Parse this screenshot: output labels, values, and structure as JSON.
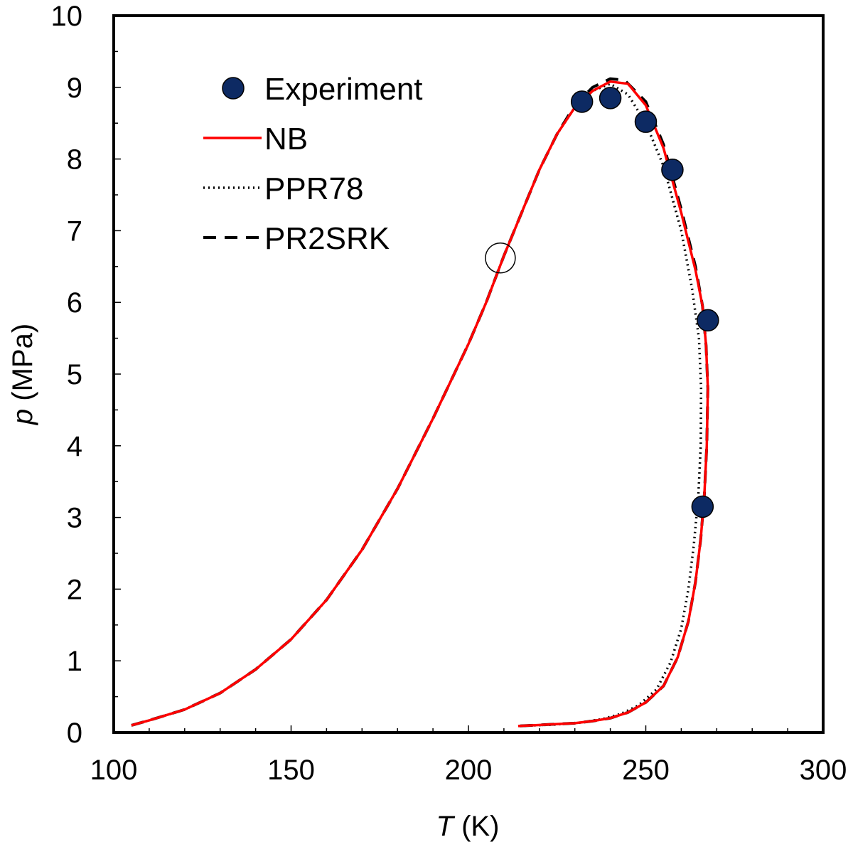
{
  "chart_data": {
    "type": "line",
    "title": "",
    "xlabel": "T",
    "xlabel_unit": "(K)",
    "ylabel": "p",
    "ylabel_unit": "(MPa)",
    "xlim": [
      100,
      300
    ],
    "ylim": [
      0,
      10
    ],
    "x_ticks": [
      100,
      150,
      200,
      250,
      300
    ],
    "y_ticks": [
      0,
      1,
      2,
      3,
      4,
      5,
      6,
      7,
      8,
      9,
      10
    ],
    "x_minor_step": 10,
    "y_minor_step": 0.5,
    "grid": false,
    "legend_position": "top-left",
    "colors": {
      "experiment": "#0d2a63",
      "nb": "#ff0000",
      "ppr78": "#000000",
      "pr2srk": "#000000"
    },
    "series": [
      {
        "name": "Experiment",
        "kind": "scatter",
        "points": [
          [
            232,
            8.8
          ],
          [
            240,
            8.85
          ],
          [
            250,
            8.52
          ],
          [
            257.5,
            7.85
          ],
          [
            267.5,
            5.75
          ],
          [
            266,
            3.15
          ]
        ]
      },
      {
        "name": "NB",
        "kind": "line",
        "style": "solid",
        "points": [
          [
            105,
            0.1
          ],
          [
            110,
            0.17
          ],
          [
            120,
            0.32
          ],
          [
            130,
            0.55
          ],
          [
            140,
            0.88
          ],
          [
            150,
            1.3
          ],
          [
            160,
            1.85
          ],
          [
            170,
            2.55
          ],
          [
            180,
            3.4
          ],
          [
            190,
            4.38
          ],
          [
            200,
            5.42
          ],
          [
            205,
            6.0
          ],
          [
            210,
            6.65
          ],
          [
            215,
            7.25
          ],
          [
            220,
            7.85
          ],
          [
            225,
            8.35
          ],
          [
            230,
            8.72
          ],
          [
            235,
            8.95
          ],
          [
            240,
            9.08
          ],
          [
            245,
            9.05
          ],
          [
            250,
            8.75
          ],
          [
            255,
            8.15
          ],
          [
            260,
            7.25
          ],
          [
            264,
            6.45
          ],
          [
            266,
            5.95
          ],
          [
            267,
            5.4
          ],
          [
            267.5,
            4.8
          ],
          [
            267.2,
            4.0
          ],
          [
            266.5,
            3.3
          ],
          [
            265.5,
            2.7
          ],
          [
            264,
            2.1
          ],
          [
            262,
            1.55
          ],
          [
            259,
            1.05
          ],
          [
            255,
            0.65
          ],
          [
            250,
            0.42
          ],
          [
            245,
            0.28
          ],
          [
            240,
            0.2
          ],
          [
            235,
            0.16
          ],
          [
            230,
            0.13
          ],
          [
            222,
            0.11
          ],
          [
            214,
            0.09
          ]
        ]
      },
      {
        "name": "PPR78",
        "kind": "line",
        "style": "dotted",
        "points": [
          [
            105,
            0.1
          ],
          [
            110,
            0.17
          ],
          [
            120,
            0.32
          ],
          [
            130,
            0.55
          ],
          [
            140,
            0.88
          ],
          [
            150,
            1.3
          ],
          [
            160,
            1.85
          ],
          [
            170,
            2.55
          ],
          [
            180,
            3.4
          ],
          [
            190,
            4.38
          ],
          [
            200,
            5.42
          ],
          [
            205,
            6.0
          ],
          [
            210,
            6.65
          ],
          [
            215,
            7.25
          ],
          [
            220,
            7.85
          ],
          [
            225,
            8.35
          ],
          [
            230,
            8.72
          ],
          [
            235,
            8.95
          ],
          [
            240,
            9.05
          ],
          [
            245,
            8.9
          ],
          [
            250,
            8.5
          ],
          [
            255,
            7.9
          ],
          [
            260,
            7.0
          ],
          [
            263,
            6.2
          ],
          [
            265,
            5.5
          ],
          [
            265.6,
            4.8
          ],
          [
            265.5,
            4.0
          ],
          [
            264.8,
            3.3
          ],
          [
            263.5,
            2.6
          ],
          [
            262,
            2.0
          ],
          [
            260,
            1.45
          ],
          [
            257,
            0.98
          ],
          [
            253,
            0.6
          ],
          [
            248,
            0.38
          ],
          [
            243,
            0.26
          ],
          [
            238,
            0.19
          ],
          [
            232,
            0.14
          ],
          [
            224,
            0.11
          ],
          [
            214,
            0.09
          ]
        ]
      },
      {
        "name": "PR2SRK",
        "kind": "line",
        "style": "dashed",
        "points": [
          [
            105,
            0.1
          ],
          [
            110,
            0.17
          ],
          [
            120,
            0.32
          ],
          [
            130,
            0.55
          ],
          [
            140,
            0.88
          ],
          [
            150,
            1.3
          ],
          [
            160,
            1.85
          ],
          [
            170,
            2.55
          ],
          [
            180,
            3.4
          ],
          [
            190,
            4.38
          ],
          [
            200,
            5.42
          ],
          [
            205,
            6.0
          ],
          [
            210,
            6.65
          ],
          [
            215,
            7.25
          ],
          [
            220,
            7.85
          ],
          [
            225,
            8.35
          ],
          [
            230,
            8.75
          ],
          [
            235,
            9.0
          ],
          [
            240,
            9.12
          ],
          [
            244,
            9.1
          ],
          [
            250,
            8.8
          ],
          [
            255,
            8.2
          ],
          [
            260,
            7.3
          ],
          [
            264,
            6.5
          ],
          [
            266,
            5.95
          ],
          [
            267,
            5.4
          ],
          [
            267.5,
            4.8
          ],
          [
            267.2,
            4.0
          ],
          [
            266.5,
            3.3
          ],
          [
            265.5,
            2.7
          ],
          [
            264,
            2.1
          ],
          [
            262,
            1.55
          ],
          [
            259,
            1.05
          ],
          [
            255,
            0.65
          ],
          [
            250,
            0.42
          ],
          [
            245,
            0.28
          ],
          [
            240,
            0.2
          ],
          [
            235,
            0.16
          ],
          [
            230,
            0.13
          ],
          [
            222,
            0.11
          ],
          [
            214,
            0.09
          ]
        ]
      }
    ],
    "annotations": [
      {
        "kind": "open-circle",
        "x": 209,
        "y": 6.62
      }
    ],
    "legend": {
      "experiment_label": "Experiment",
      "nb_label": "NB",
      "ppr78_label": "PPR78",
      "pr2srk_label": "PR2SRK"
    }
  }
}
